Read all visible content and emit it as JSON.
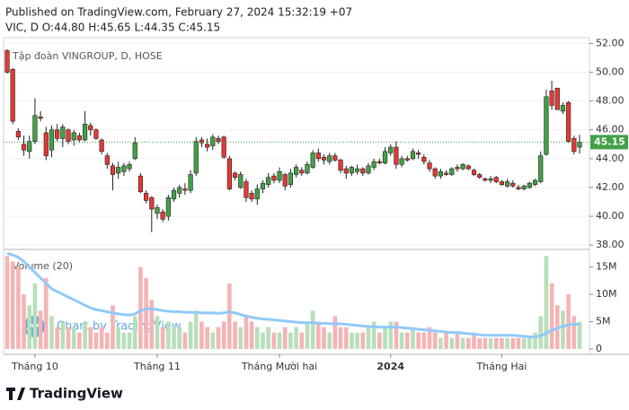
{
  "header": {
    "published": "Published on TradingView.com, February 27, 2024 15:32:19 +07",
    "quote": "VIC, D O:44.80 H:45.65 L:44.35 C:45.15"
  },
  "footer": {
    "logo": "TradingView"
  },
  "chart_data": {
    "type": "candlestick",
    "title": "Tập đoàn VINGROUP, D, HOSE",
    "volume_title": "Volume (20)",
    "watermark": "Chart by TradingView",
    "categories": [
      null,
      null,
      null,
      null,
      null,
      "Tháng 10",
      null,
      null,
      null,
      null,
      null,
      null,
      null,
      null,
      null,
      null,
      null,
      null,
      null,
      null,
      null,
      null,
      null,
      null,
      null,
      null,
      null,
      "Tháng 11",
      null,
      null,
      null,
      null,
      null,
      null,
      null,
      null,
      null,
      null,
      null,
      null,
      null,
      null,
      null,
      null,
      null,
      null,
      null,
      null,
      null,
      "Tháng Mười hai",
      null,
      null,
      null,
      null,
      null,
      null,
      null,
      null,
      null,
      null,
      null,
      null,
      null,
      null,
      null,
      null,
      null,
      null,
      null,
      "2024",
      null,
      null,
      null,
      null,
      null,
      null,
      null,
      null,
      null,
      null,
      null,
      null,
      null,
      null,
      null,
      null,
      null,
      null,
      null,
      "Tháng Hai",
      null,
      null,
      null,
      null,
      null,
      null,
      null,
      null,
      null,
      null,
      null,
      null,
      null,
      null
    ],
    "ohlc": [
      [
        51.5,
        51.6,
        49.9,
        50.0
      ],
      [
        50.2,
        50.3,
        46.4,
        46.6
      ],
      [
        45.9,
        46.1,
        45.3,
        45.5
      ],
      [
        45.0,
        45.6,
        44.2,
        44.6
      ],
      [
        44.5,
        45.6,
        44.0,
        45.2
      ],
      [
        45.2,
        48.2,
        45.0,
        47.0
      ],
      [
        46.9,
        47.3,
        46.6,
        46.8
      ],
      [
        45.8,
        46.2,
        43.9,
        44.2
      ],
      [
        44.6,
        46.3,
        44.1,
        46.0
      ],
      [
        46.0,
        46.4,
        45.2,
        45.4
      ],
      [
        45.4,
        46.4,
        44.8,
        46.2
      ],
      [
        46.0,
        46.1,
        45.0,
        45.2
      ],
      [
        45.3,
        46.0,
        44.9,
        45.8
      ],
      [
        45.6,
        45.8,
        45.1,
        45.3
      ],
      [
        45.3,
        47.3,
        45.2,
        46.4
      ],
      [
        46.3,
        46.5,
        45.6,
        46.0
      ],
      [
        46.0,
        46.1,
        45.3,
        45.4
      ],
      [
        45.3,
        45.4,
        44.3,
        44.5
      ],
      [
        44.2,
        44.4,
        43.3,
        43.6
      ],
      [
        43.5,
        43.7,
        41.8,
        42.9
      ],
      [
        43.0,
        43.8,
        42.6,
        43.4
      ],
      [
        43.1,
        43.7,
        42.8,
        43.5
      ],
      [
        43.3,
        43.8,
        43.1,
        43.6
      ],
      [
        44.0,
        45.5,
        43.9,
        45.1
      ],
      [
        42.8,
        43.0,
        41.6,
        41.7
      ],
      [
        41.6,
        41.8,
        40.9,
        41.1
      ],
      [
        41.3,
        41.4,
        38.9,
        40.5
      ],
      [
        40.2,
        40.8,
        39.8,
        40.6
      ],
      [
        40.3,
        40.5,
        39.6,
        39.8
      ],
      [
        40.0,
        41.5,
        39.7,
        41.3
      ],
      [
        41.2,
        42.0,
        41.0,
        41.8
      ],
      [
        41.6,
        42.2,
        41.3,
        42.0
      ],
      [
        41.9,
        42.3,
        41.5,
        41.8
      ],
      [
        41.8,
        43.2,
        41.6,
        42.9
      ],
      [
        43.0,
        45.5,
        42.8,
        45.2
      ],
      [
        45.3,
        45.5,
        44.8,
        45.1
      ],
      [
        45.0,
        45.4,
        44.5,
        44.8
      ],
      [
        44.9,
        45.7,
        44.6,
        45.5
      ],
      [
        45.4,
        45.6,
        45.0,
        45.2
      ],
      [
        45.5,
        45.6,
        44.0,
        44.1
      ],
      [
        44.0,
        44.2,
        41.8,
        41.9
      ],
      [
        43.0,
        43.1,
        42.5,
        42.7
      ],
      [
        42.0,
        43.1,
        41.9,
        42.9
      ],
      [
        42.4,
        42.6,
        41.0,
        41.3
      ],
      [
        41.6,
        41.8,
        41.0,
        41.2
      ],
      [
        41.2,
        42.2,
        40.8,
        41.9
      ],
      [
        41.9,
        42.5,
        41.6,
        42.3
      ],
      [
        42.2,
        43.0,
        42.0,
        42.7
      ],
      [
        42.8,
        43.0,
        42.3,
        42.5
      ],
      [
        42.5,
        43.4,
        42.3,
        43.1
      ],
      [
        42.9,
        43.0,
        41.8,
        42.1
      ],
      [
        42.2,
        43.3,
        42.0,
        43.0
      ],
      [
        42.9,
        43.6,
        42.7,
        43.4
      ],
      [
        43.2,
        43.4,
        42.8,
        43.0
      ],
      [
        43.0,
        43.8,
        42.9,
        43.6
      ],
      [
        43.4,
        44.6,
        43.3,
        44.4
      ],
      [
        44.4,
        44.7,
        43.8,
        44.0
      ],
      [
        44.1,
        44.3,
        43.6,
        43.9
      ],
      [
        43.8,
        44.4,
        43.6,
        44.2
      ],
      [
        44.2,
        44.4,
        43.8,
        43.9
      ],
      [
        43.9,
        44.0,
        43.0,
        43.2
      ],
      [
        43.3,
        43.5,
        42.6,
        43.0
      ],
      [
        43.0,
        43.5,
        42.8,
        43.4
      ],
      [
        43.1,
        43.6,
        42.9,
        43.3
      ],
      [
        43.3,
        43.4,
        42.8,
        43.0
      ],
      [
        43.0,
        43.7,
        42.9,
        43.5
      ],
      [
        43.4,
        44.0,
        43.2,
        43.8
      ],
      [
        43.8,
        44.0,
        43.6,
        43.7
      ],
      [
        43.7,
        44.8,
        43.6,
        44.5
      ],
      [
        44.4,
        45.0,
        44.2,
        44.8
      ],
      [
        44.8,
        45.2,
        43.3,
        43.6
      ],
      [
        43.6,
        44.2,
        43.4,
        44.0
      ],
      [
        44.0,
        44.2,
        43.8,
        43.9
      ],
      [
        44.0,
        44.7,
        43.9,
        44.5
      ],
      [
        44.4,
        44.6,
        44.0,
        44.3
      ],
      [
        44.1,
        44.3,
        43.6,
        43.8
      ],
      [
        43.7,
        43.9,
        43.1,
        43.3
      ],
      [
        43.3,
        43.4,
        42.6,
        42.8
      ],
      [
        42.8,
        43.3,
        42.6,
        43.1
      ],
      [
        43.0,
        43.2,
        42.8,
        42.9
      ],
      [
        42.9,
        43.4,
        42.8,
        43.3
      ],
      [
        43.4,
        43.6,
        43.1,
        43.3
      ],
      [
        43.3,
        43.7,
        43.2,
        43.6
      ],
      [
        43.5,
        43.6,
        43.2,
        43.3
      ],
      [
        43.2,
        43.3,
        42.8,
        42.9
      ],
      [
        42.9,
        43.0,
        42.6,
        42.7
      ],
      [
        42.6,
        42.7,
        42.4,
        42.5
      ],
      [
        42.5,
        42.8,
        42.3,
        42.6
      ],
      [
        42.7,
        42.8,
        42.3,
        42.4
      ],
      [
        42.4,
        42.5,
        42.1,
        42.2
      ],
      [
        42.1,
        42.6,
        42.0,
        42.4
      ],
      [
        42.3,
        42.5,
        42.0,
        42.1
      ],
      [
        42.0,
        42.2,
        41.8,
        41.9
      ],
      [
        41.9,
        42.2,
        41.8,
        42.1
      ],
      [
        42.0,
        42.4,
        41.9,
        42.3
      ],
      [
        42.2,
        42.6,
        42.1,
        42.5
      ],
      [
        42.4,
        44.5,
        42.3,
        44.2
      ],
      [
        44.3,
        48.8,
        44.2,
        48.3
      ],
      [
        48.7,
        49.4,
        47.4,
        47.7
      ],
      [
        48.9,
        48.9,
        47.4,
        47.4
      ],
      [
        47.3,
        47.9,
        47.1,
        47.7
      ],
      [
        47.9,
        48.0,
        45.1,
        45.2
      ],
      [
        45.4,
        45.6,
        44.3,
        44.5
      ],
      [
        44.8,
        45.65,
        44.35,
        45.15
      ]
    ],
    "volume": [
      17,
      16,
      15,
      10,
      8,
      12,
      7,
      13,
      6,
      4,
      5,
      4,
      4,
      3,
      5,
      4,
      3,
      4,
      3,
      8,
      4,
      3,
      3,
      6,
      15,
      13,
      9,
      6,
      4,
      5,
      4,
      4,
      3,
      5,
      7,
      5,
      4,
      3,
      4,
      5,
      12,
      5,
      4,
      6,
      5,
      4,
      3,
      4,
      3,
      3,
      4,
      3,
      4,
      3,
      5,
      7,
      5,
      4,
      3,
      6,
      4,
      4,
      3,
      3,
      3,
      4,
      5,
      3,
      4,
      5,
      5,
      3,
      3,
      4,
      3,
      3,
      4,
      3,
      2,
      3,
      2,
      3,
      2,
      2,
      3,
      2,
      2,
      2,
      2,
      2,
      2,
      2,
      2,
      2,
      2,
      3,
      6,
      17,
      12,
      8,
      7,
      10,
      6,
      5
    ],
    "volume_ma": [
      17.5,
      17.2,
      16.8,
      16,
      15,
      14,
      13,
      12,
      11,
      10.5,
      10,
      9.5,
      9,
      8.5,
      8,
      7.5,
      7.2,
      7,
      6.8,
      6.6,
      6.4,
      6.3,
      6.2,
      6.4,
      7,
      7.3,
      7.4,
      7.2,
      7,
      6.9,
      6.8,
      6.8,
      6.7,
      6.7,
      6.7,
      6.6,
      6.6,
      6.6,
      6.5,
      6.6,
      6.8,
      6.6,
      6.3,
      6,
      5.8,
      5.6,
      5.5,
      5.4,
      5.3,
      5.2,
      5.1,
      5,
      4.9,
      4.8,
      4.8,
      4.8,
      4.7,
      4.7,
      4.6,
      4.6,
      4.6,
      4.5,
      4.4,
      4.3,
      4.2,
      4.1,
      4.1,
      4,
      4,
      4,
      4,
      3.9,
      3.8,
      3.7,
      3.6,
      3.5,
      3.4,
      3.3,
      3.2,
      3.1,
      3,
      3,
      2.9,
      2.8,
      2.7,
      2.6,
      2.5,
      2.5,
      2.5,
      2.5,
      2.5,
      2.5,
      2.4,
      2.3,
      2.2,
      2.2,
      2.4,
      2.9,
      3.4,
      3.8,
      4.1,
      4.4,
      4.5,
      4.5
    ],
    "last_price": 45.15,
    "ylim": [
      37.7,
      52.4
    ],
    "yticks": [
      {
        "value": 38,
        "label": "38.00"
      },
      {
        "value": 40,
        "label": "40.00"
      },
      {
        "value": 42,
        "label": "42.00"
      },
      {
        "value": 44,
        "label": "44.00"
      },
      {
        "value": 46,
        "label": "46.00"
      },
      {
        "value": 48,
        "label": "48.00"
      },
      {
        "value": 50,
        "label": "50.00"
      },
      {
        "value": 52,
        "label": "52.00"
      }
    ],
    "y2lim": [
      -1,
      17.9
    ],
    "y2ticks": [
      0,
      {
        "value": 5,
        "label": "5M"
      },
      {
        "value": 10,
        "label": "10M"
      },
      {
        "value": 15,
        "label": "15M"
      }
    ],
    "up_color": "#43a047",
    "down_color": "#e53935",
    "volume_up_color": "#b7dfb9",
    "volume_down_color": "#f5b3b5",
    "ma_color": "#90caf9",
    "grid": true
  }
}
